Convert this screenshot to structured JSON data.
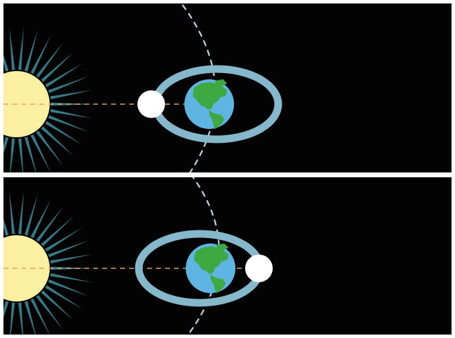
{
  "colors": {
    "space": "#030303",
    "frame": "#ffffff",
    "sun": "#fbf0a2",
    "sun_rays": "#3e8f9e",
    "sun_line": "#e2a35a",
    "orbit_ring": "#86b8cc",
    "earth_ocean": "#5fb5e2",
    "earth_land": "#3ea843",
    "moon": "#ffffff",
    "earth_path": "#b8dbe6"
  },
  "panels": [
    {
      "name": "top-panel",
      "moon_side": "left"
    },
    {
      "name": "bottom-panel",
      "moon_side": "right"
    }
  ],
  "icons": [
    "sun-icon",
    "earth-icon",
    "moon-icon"
  ]
}
